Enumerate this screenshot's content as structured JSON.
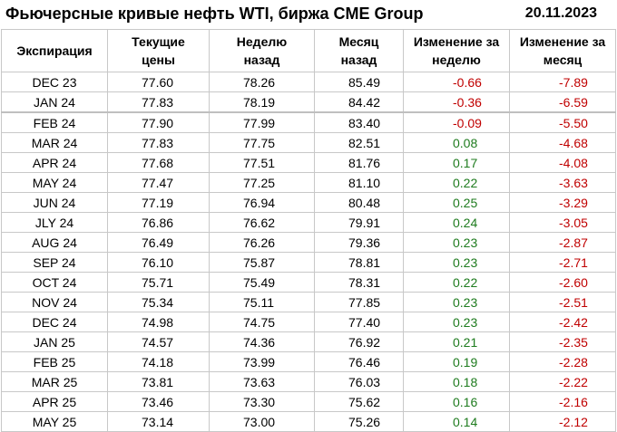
{
  "title": "Фьючерсные кривые нефть WTI, биржа CME Group",
  "date": "20.11.2023",
  "columns": [
    "Экспирация",
    "Текущие цены",
    "Неделю назад",
    "Месяц назад",
    "Изменение за неделю",
    "Изменение за месяц"
  ],
  "rows": [
    [
      "DEC 23",
      "77.60",
      "78.26",
      "85.49",
      "-0.66",
      "-7.89"
    ],
    [
      "JAN 24",
      "77.83",
      "78.19",
      "84.42",
      "-0.36",
      "-6.59"
    ],
    [
      "FEB 24",
      "77.90",
      "77.99",
      "83.40",
      "-0.09",
      "-5.50"
    ],
    [
      "MAR 24",
      "77.83",
      "77.75",
      "82.51",
      "0.08",
      "-4.68"
    ],
    [
      "APR 24",
      "77.68",
      "77.51",
      "81.76",
      "0.17",
      "-4.08"
    ],
    [
      "MAY 24",
      "77.47",
      "77.25",
      "81.10",
      "0.22",
      "-3.63"
    ],
    [
      "JUN 24",
      "77.19",
      "76.94",
      "80.48",
      "0.25",
      "-3.29"
    ],
    [
      "JLY 24",
      "76.86",
      "76.62",
      "79.91",
      "0.24",
      "-3.05"
    ],
    [
      "AUG 24",
      "76.49",
      "76.26",
      "79.36",
      "0.23",
      "-2.87"
    ],
    [
      "SEP 24",
      "76.10",
      "75.87",
      "78.81",
      "0.23",
      "-2.71"
    ],
    [
      "OCT 24",
      "75.71",
      "75.49",
      "78.31",
      "0.22",
      "-2.60"
    ],
    [
      "NOV 24",
      "75.34",
      "75.11",
      "77.85",
      "0.23",
      "-2.51"
    ],
    [
      "DEC 24",
      "74.98",
      "74.75",
      "77.40",
      "0.23",
      "-2.42"
    ],
    [
      "JAN 25",
      "74.57",
      "74.36",
      "76.92",
      "0.21",
      "-2.35"
    ],
    [
      "FEB 25",
      "74.18",
      "73.99",
      "76.46",
      "0.19",
      "-2.28"
    ],
    [
      "MAR 25",
      "73.81",
      "73.63",
      "76.03",
      "0.18",
      "-2.22"
    ],
    [
      "APR 25",
      "73.46",
      "73.30",
      "75.62",
      "0.16",
      "-2.16"
    ],
    [
      "MAY 25",
      "73.14",
      "73.00",
      "75.26",
      "0.14",
      "-2.12"
    ]
  ],
  "colors": {
    "positive": "#1e7b1e",
    "negative": "#c00000",
    "border": "#c8c8c8"
  }
}
